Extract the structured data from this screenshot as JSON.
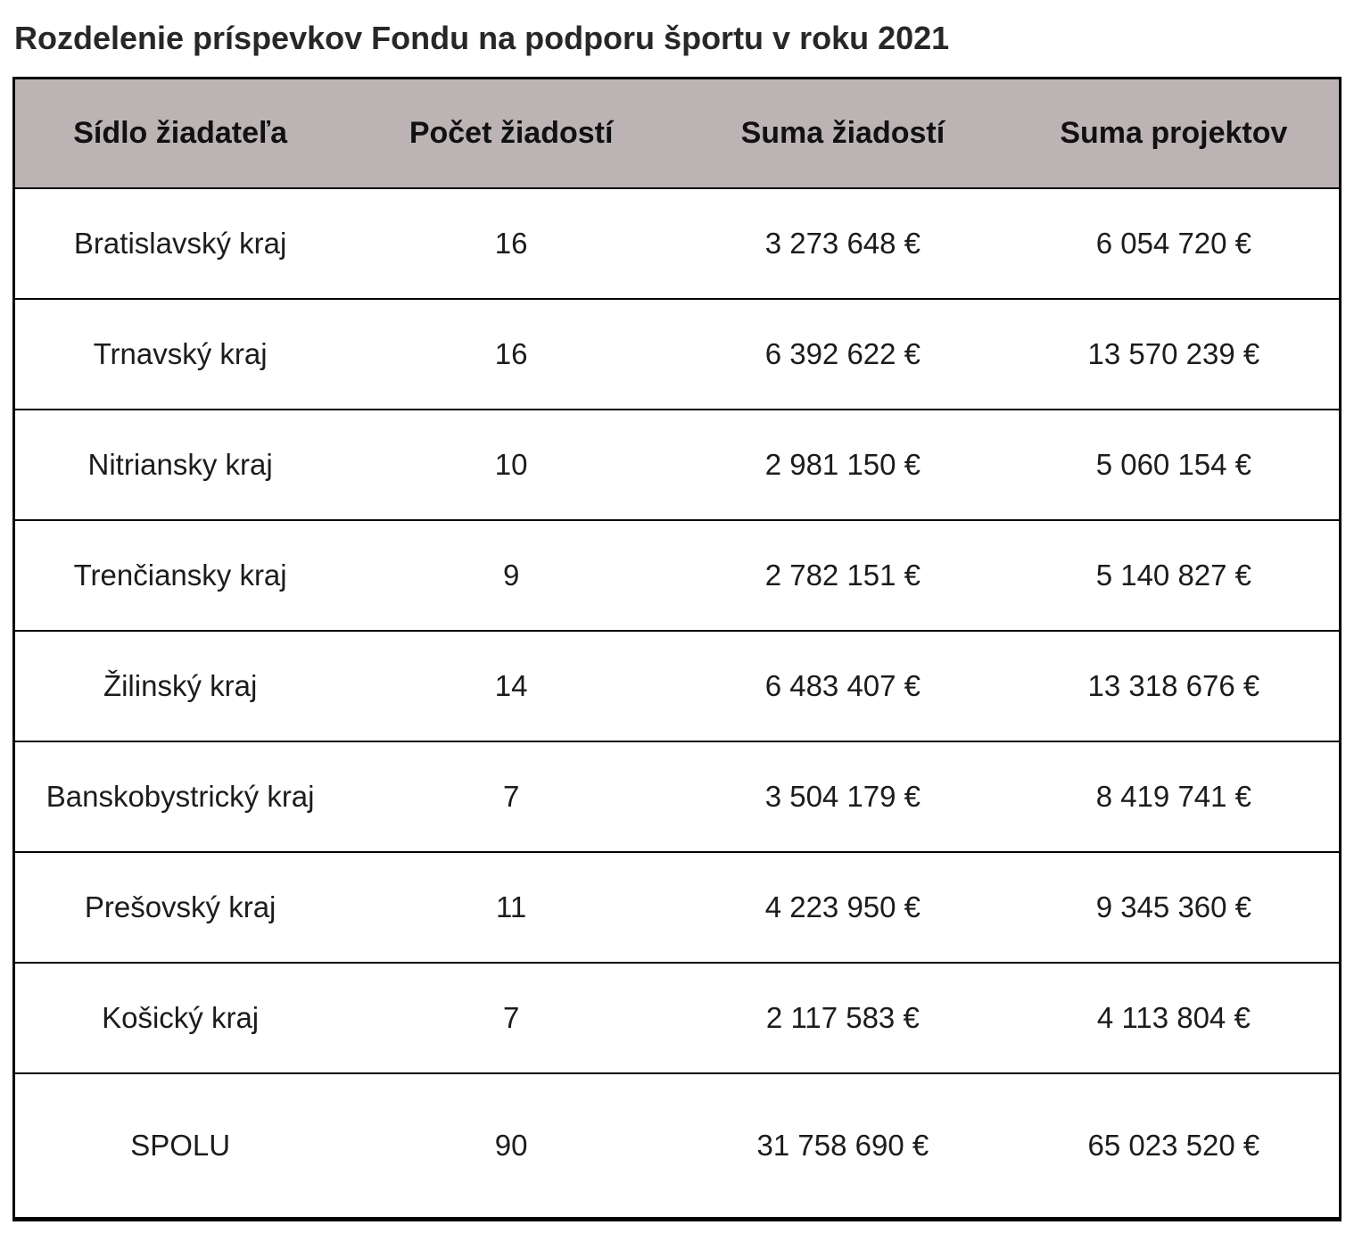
{
  "title": "Rozdelenie príspevkov Fondu na podporu športu v roku 2021",
  "colors": {
    "header_bg": "#bcb4b4",
    "border": "#000000",
    "text": "#1c1c1c"
  },
  "table": {
    "headers": [
      "Sídlo žiadateľa",
      "Počet žiadostí",
      "Suma žiadostí",
      "Suma projektov"
    ],
    "rows": [
      [
        "Bratislavský kraj",
        "16",
        "3 273 648 €",
        "6 054 720 €"
      ],
      [
        "Trnavský kraj",
        "16",
        "6 392 622 €",
        "13 570 239 €"
      ],
      [
        "Nitriansky kraj",
        "10",
        "2 981 150 €",
        "5 060 154 €"
      ],
      [
        "Trenčiansky kraj",
        "9",
        "2 782 151 €",
        "5 140 827 €"
      ],
      [
        "Žilinský kraj",
        "14",
        "6 483 407 €",
        "13 318 676 €"
      ],
      [
        "Banskobystrický kraj",
        "7",
        "3 504 179 €",
        "8 419 741 €"
      ],
      [
        "Prešovský kraj",
        "11",
        "4 223 950 €",
        "9 345 360 €"
      ],
      [
        "Košický kraj",
        "7",
        "2 117 583 €",
        "4 113 804 €"
      ],
      [
        "SPOLU",
        "90",
        "31 758 690 €",
        "65 023 520 €"
      ]
    ],
    "total_row_label": "SPOLU"
  },
  "chart_data": {
    "type": "table",
    "title": "Rozdelenie príspevkov Fondu na podporu športu v roku 2021",
    "columns": [
      "Sídlo žiadateľa",
      "Počet žiadostí",
      "Suma žiadostí",
      "Suma projektov"
    ],
    "rows": [
      {
        "sidlo": "Bratislavský kraj",
        "pocet_ziadosti": 16,
        "suma_ziadosti_eur": 3273648,
        "suma_projektov_eur": 6054720
      },
      {
        "sidlo": "Trnavský kraj",
        "pocet_ziadosti": 16,
        "suma_ziadosti_eur": 6392622,
        "suma_projektov_eur": 13570239
      },
      {
        "sidlo": "Nitriansky kraj",
        "pocet_ziadosti": 10,
        "suma_ziadosti_eur": 2981150,
        "suma_projektov_eur": 5060154
      },
      {
        "sidlo": "Trenčiansky kraj",
        "pocet_ziadosti": 9,
        "suma_ziadosti_eur": 2782151,
        "suma_projektov_eur": 5140827
      },
      {
        "sidlo": "Žilinský kraj",
        "pocet_ziadosti": 14,
        "suma_ziadosti_eur": 6483407,
        "suma_projektov_eur": 13318676
      },
      {
        "sidlo": "Banskobystrický kraj",
        "pocet_ziadosti": 7,
        "suma_ziadosti_eur": 3504179,
        "suma_projektov_eur": 8419741
      },
      {
        "sidlo": "Prešovský kraj",
        "pocet_ziadosti": 11,
        "suma_ziadosti_eur": 4223950,
        "suma_projektov_eur": 9345360
      },
      {
        "sidlo": "Košický kraj",
        "pocet_ziadosti": 7,
        "suma_ziadosti_eur": 2117583,
        "suma_projektov_eur": 4113804
      },
      {
        "sidlo": "SPOLU",
        "pocet_ziadosti": 90,
        "suma_ziadosti_eur": 31758690,
        "suma_projektov_eur": 65023520
      }
    ]
  }
}
